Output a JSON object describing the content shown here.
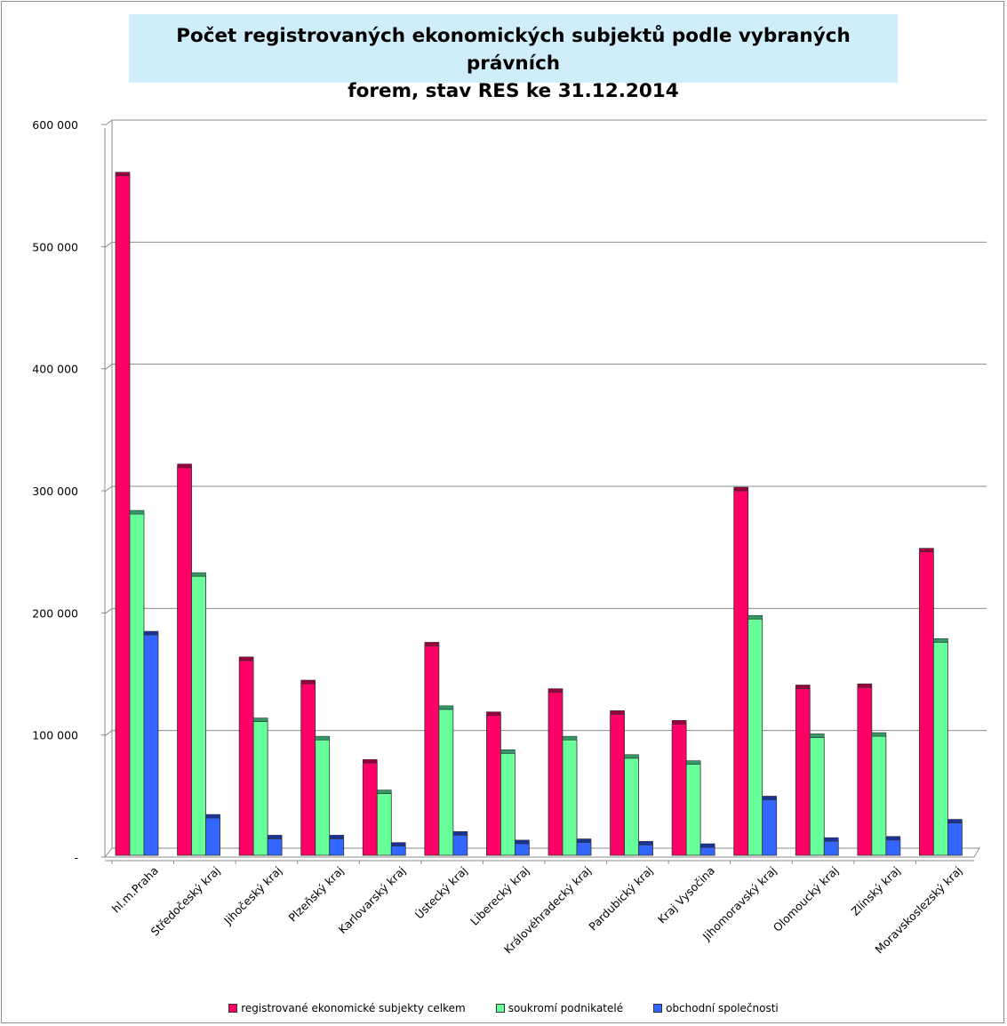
{
  "chart_data": {
    "type": "bar",
    "title": "Počet  registrovaných ekonomických subjektů podle vybraných právních\nforem, stav RES ke 31.12.2014",
    "categories": [
      "hl.m.Praha",
      "Středočeský kraj",
      "Jihočeský kraj",
      "Plzeňský kraj",
      "Karlovarský kraj",
      "Ústecký kraj",
      "Liberecký kraj",
      "Královéhradecký kraj",
      "Pardubický kraj",
      "Kraj Vysočina",
      "Jihomoravský kraj",
      "Olomoucký kraj",
      "Zlínský kraj",
      "Moravskoslezský kraj"
    ],
    "series": [
      {
        "name": "registrované ekonomické subjekty celkem",
        "color": "#ff0066",
        "values": [
          558000,
          319000,
          161000,
          142000,
          77000,
          173000,
          116000,
          135000,
          117000,
          109000,
          300000,
          138000,
          139000,
          250000
        ]
      },
      {
        "name": "soukromí podnikatelé",
        "color": "#66ff99",
        "values": [
          281000,
          230000,
          111000,
          96000,
          52000,
          121000,
          85000,
          96000,
          81000,
          76000,
          195000,
          98000,
          99000,
          176000
        ]
      },
      {
        "name": "obchodní společnosti",
        "color": "#3366ff",
        "values": [
          182000,
          32000,
          15000,
          15000,
          9000,
          18000,
          11000,
          12000,
          10000,
          8000,
          47000,
          13000,
          14000,
          28000
        ]
      }
    ],
    "y_ticks": [
      {
        "value": 0,
        "label": "-"
      },
      {
        "value": 100000,
        "label": "100 000"
      },
      {
        "value": 200000,
        "label": "200 000"
      },
      {
        "value": 300000,
        "label": "300 000"
      },
      {
        "value": 400000,
        "label": "400 000"
      },
      {
        "value": 500000,
        "label": "500 000"
      },
      {
        "value": 600000,
        "label": "600 000"
      }
    ],
    "ylim": [
      0,
      600000
    ],
    "grid": true,
    "legend_position": "bottom"
  }
}
